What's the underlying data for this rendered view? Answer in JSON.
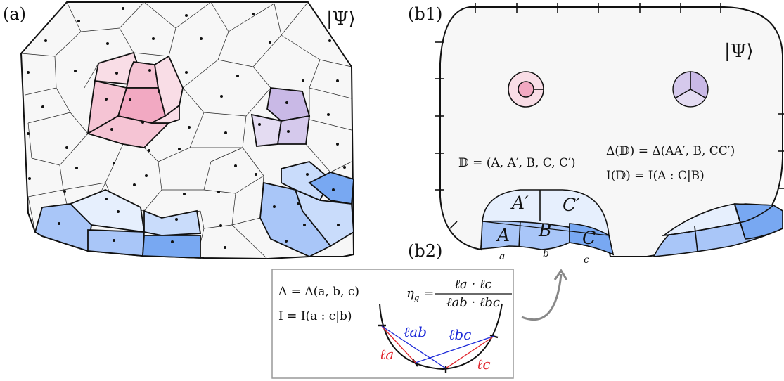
{
  "panel_labels": {
    "a": "(a)",
    "b1": "(b1)",
    "b2": "(b2)"
  },
  "state_label": "|Ψ⟩",
  "colors": {
    "pink_light": "#f9dde6",
    "pink_mid": "#f5c4d4",
    "pink_dark": "#f2a9c2",
    "purple_light": "#e4dcf2",
    "purple_dark": "#c9b9e6",
    "blue_lighter": "#e6effd",
    "blue_light": "#c9dcfb",
    "blue_mid": "#a9c6f8",
    "blue_dark": "#78a8f2",
    "cell_fill": "#f7f7f7",
    "arc_red": "#e0232a",
    "arc_blue": "#1d2ad8"
  },
  "b1": {
    "D_def": "𝔻 = (A, A′, B, C, C′)",
    "delta_def": "Δ(𝔻) = Δ(AA′, B, CC′)",
    "I_def": "I(𝔻) = I(A : C|B)",
    "regions": {
      "A_prime": "A′",
      "C_prime": "C′",
      "A": "A",
      "B": "B",
      "C": "C"
    },
    "boundary_labels": {
      "a": "a",
      "b": "b",
      "c": "c"
    }
  },
  "b2": {
    "delta_eq": "Δ = Δ(a, b, c)",
    "I_eq": "I = I(a : c|b)",
    "eta_lhs": "η",
    "eta_sub": "g",
    "eta_num": "ℓa · ℓc",
    "eta_den": "ℓab · ℓbc",
    "l_ab": "ℓab",
    "l_bc": "ℓbc",
    "l_a": "ℓa",
    "l_c": "ℓc"
  }
}
